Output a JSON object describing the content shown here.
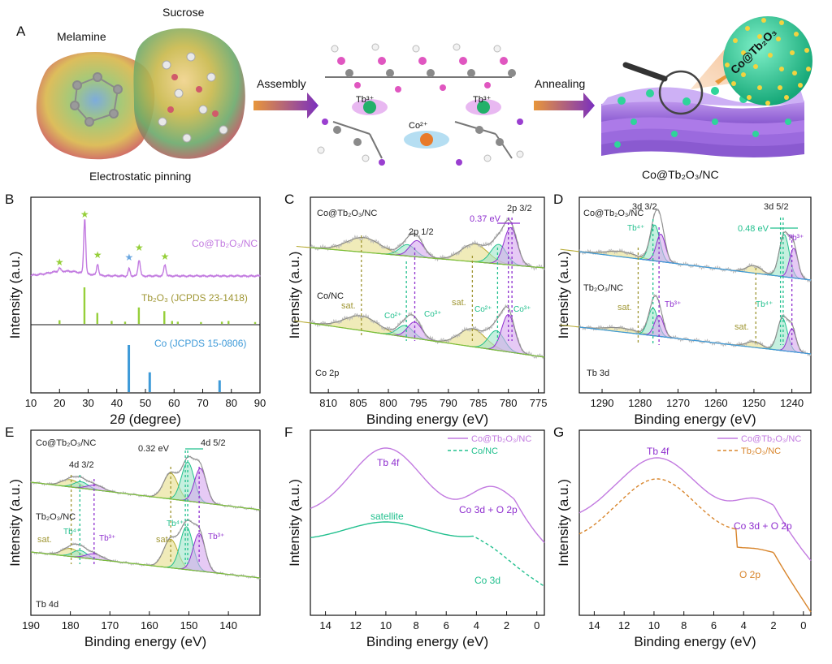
{
  "colors": {
    "violet": "#c27ae0",
    "purple": "#8f2fcf",
    "green": "#22c08e",
    "olive": "#b5a92f",
    "olive_dark": "#9f9633",
    "blue": "#3e9ad8",
    "orange": "#d8852c",
    "grey": "#b9b9b9",
    "lime": "#96cf3a"
  },
  "panelA": {
    "label": "A",
    "melamine": "Melamine",
    "sucrose": "Sucrose",
    "pinning": "Electrostatic pinning",
    "assembly": "Assembly",
    "annealing": "Annealing",
    "tb_left": "Tb³⁺",
    "tb_right": "Tb³⁺",
    "co": "Co²⁺",
    "product": "Co@Tb₂O₃/NC",
    "sphere": "Co@Tb₂O₃"
  },
  "chart_data": [
    {
      "panel": "B",
      "type": "line",
      "label": "B",
      "xlabel": "2θ (degree)",
      "ylabel": "Intensity (a.u.)",
      "xlim": [
        10,
        90
      ],
      "xticks": [
        10,
        20,
        30,
        40,
        50,
        60,
        70,
        80,
        90
      ],
      "series_label": "Co@Tb₂O₃/NC",
      "peaks": [
        20.0,
        28.8,
        33.3,
        44.3,
        47.8,
        56.8
      ],
      "ref1_label": "Tb₂O₃ (JCPDS 23-1418)",
      "ref1": [
        [
          20.0,
          0.1
        ],
        [
          28.7,
          1.0
        ],
        [
          33.2,
          0.3
        ],
        [
          38.2,
          0.08
        ],
        [
          42.9,
          0.06
        ],
        [
          47.7,
          0.45
        ],
        [
          56.6,
          0.35
        ],
        [
          59.3,
          0.08
        ],
        [
          61.3,
          0.06
        ],
        [
          69.4,
          0.05
        ],
        [
          76.7,
          0.06
        ],
        [
          79.0,
          0.08
        ],
        [
          88.3,
          0.05
        ]
      ],
      "ref2_label": "Co (JCPDS 15-0806)",
      "ref2": [
        [
          44.2,
          1.0
        ],
        [
          51.5,
          0.42
        ],
        [
          75.9,
          0.25
        ]
      ]
    },
    {
      "panel": "C",
      "type": "line",
      "label": "C",
      "xlabel": "Binding energy (eV)",
      "ylabel": "Intensity (a.u.)",
      "xlim": [
        813,
        774
      ],
      "xticks": [
        810,
        805,
        800,
        795,
        790,
        785,
        780,
        775
      ],
      "series": [
        "Co@Tb₂O₃/NC",
        "Co/NC"
      ],
      "core": "Co 2p",
      "labels": {
        "p12": "2p 1/2",
        "p32": "2p 3/2",
        "shift": "0.37 eV",
        "sat1": "sat.",
        "sat2": "sat.",
        "co2a": "Co²⁺",
        "co3a": "Co³⁺",
        "co2b": "Co²⁺",
        "co3b": "Co³⁺"
      }
    },
    {
      "panel": "D",
      "type": "line",
      "label": "D",
      "xlabel": "Binding energy (eV)",
      "ylabel": "Intensity (a.u.)",
      "xlim": [
        1296,
        1235
      ],
      "xticks": [
        1290,
        1280,
        1270,
        1260,
        1250,
        1240
      ],
      "series": [
        "Co@Tb₂O₃/NC",
        "Tb₂O₃/NC"
      ],
      "core": "Tb 3d",
      "labels": {
        "d32": "3d 3/2",
        "d52": "3d 5/2",
        "shift": "0.48 eV",
        "tb4a": "Tb⁴⁺",
        "tb3a": "Tb³⁺",
        "sat1": "sat.",
        "tb3b": "Tb³⁺",
        "tb4b": "Tb⁴⁺",
        "sat2": "sat."
      }
    },
    {
      "panel": "E",
      "type": "line",
      "label": "E",
      "xlabel": "Binding energy (eV)",
      "ylabel": "Intensity (a.u.)",
      "xlim": [
        190,
        132
      ],
      "xticks": [
        190,
        180,
        170,
        160,
        150,
        140
      ],
      "series": [
        "Co@Tb₂O₃/NC",
        "Tb₂O₃/NC"
      ],
      "core": "Tb 4d",
      "labels": {
        "d32": "4d 3/2",
        "d52": "4d 5/2",
        "shift": "0.32 eV",
        "tb4a": "Tb⁴⁺",
        "sat1": "sat.",
        "tb3a": "Tb³⁺",
        "sat2": "sat.",
        "tb4b": "Tb⁴⁺",
        "tb3b": "Tb³⁺"
      }
    },
    {
      "panel": "F",
      "type": "line",
      "label": "F",
      "xlabel": "Binding energy (eV)",
      "ylabel": "Intensity (a.u.)",
      "xlim": [
        15,
        -0.5
      ],
      "xticks": [
        14,
        12,
        10,
        8,
        6,
        4,
        2,
        0
      ],
      "series": [
        "Co@Tb₂O₃/NC",
        "Co/NC"
      ],
      "labels": {
        "tb4f": "Tb 4f",
        "satellite": "satellite",
        "co3d_o2p": "Co 3d + O 2p",
        "co3d": "Co 3d"
      }
    },
    {
      "panel": "G",
      "type": "line",
      "label": "G",
      "xlabel": "Binding energy (eV)",
      "ylabel": "Intensity (a.u.)",
      "xlim": [
        15,
        -0.5
      ],
      "xticks": [
        14,
        12,
        10,
        8,
        6,
        4,
        2,
        0
      ],
      "series": [
        "Co@Tb₂O₃/NC",
        "Tb₂O₃/NC"
      ],
      "labels": {
        "tb4f": "Tb 4f",
        "co3d_o2p": "Co 3d + O 2p",
        "o2p": "O 2p"
      }
    }
  ]
}
